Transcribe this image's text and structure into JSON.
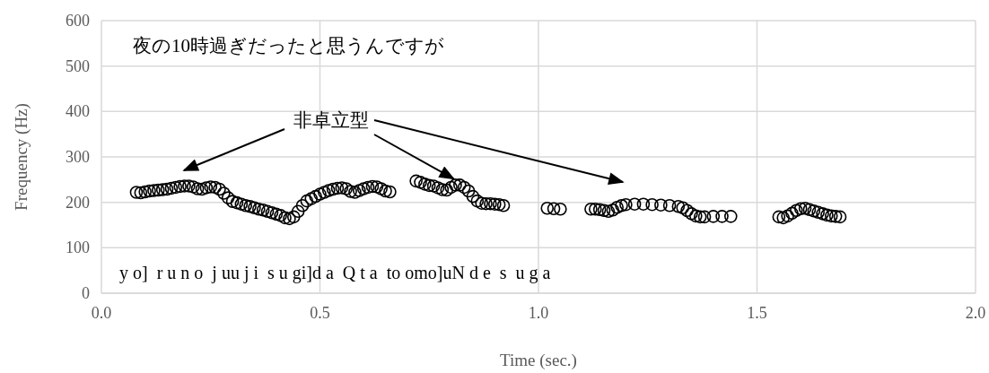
{
  "chart_data": {
    "type": "scatter",
    "xlabel": "Time (sec.)",
    "ylabel": "Frequency (Hz)",
    "xlim": [
      0,
      2
    ],
    "xticks": [
      {
        "value": 0,
        "label": "0.0"
      },
      {
        "value": 0.5,
        "label": "0.5"
      },
      {
        "value": 1,
        "label": "1.0"
      },
      {
        "value": 1.5,
        "label": "1.5"
      },
      {
        "value": 2,
        "label": "2.0"
      }
    ],
    "ylim": [
      0,
      600
    ],
    "yticks": [
      0,
      100,
      200,
      300,
      400,
      500,
      600
    ],
    "grid": true,
    "marker": "circle",
    "annotations": [
      "夜の10時過ぎだったと思うんですが",
      "y o]  r u n o  j uu j i  s u gi]d a  Q t a  to omo]uN d e  s  u g a",
      {
        "text": "非卓立型",
        "x": 0.81,
        "y": 238
      }
    ],
    "series": [
      {
        "color": "#000000",
        "x": [
          0.08,
          0.09,
          0.1,
          0.11,
          0.12,
          0.13,
          0.14,
          0.15,
          0.16,
          0.17,
          0.18,
          0.19,
          0.2,
          0.21,
          0.22,
          0.23,
          0.24,
          0.25,
          0.26,
          0.27,
          0.28,
          0.29,
          0.3,
          0.31,
          0.32,
          0.33,
          0.34,
          0.35,
          0.36,
          0.37,
          0.38,
          0.39,
          0.4,
          0.41,
          0.42,
          0.43,
          0.44,
          0.45,
          0.46,
          0.47,
          0.48,
          0.49,
          0.5,
          0.51,
          0.52,
          0.53,
          0.54,
          0.55,
          0.56,
          0.57,
          0.58,
          0.59,
          0.6,
          0.61,
          0.62,
          0.63,
          0.64,
          0.65,
          0.66,
          0.72,
          0.73,
          0.74,
          0.75,
          0.76,
          0.77,
          0.78,
          0.79,
          0.8,
          0.81,
          0.82,
          0.83,
          0.84,
          0.85,
          0.86,
          0.87,
          0.88,
          0.89,
          0.9,
          0.91,
          0.92,
          1.02,
          1.035,
          1.05,
          1.12,
          1.13,
          1.14,
          1.15,
          1.16,
          1.17,
          1.18,
          1.19,
          1.2,
          1.22,
          1.24,
          1.26,
          1.28,
          1.3,
          1.32,
          1.33,
          1.34,
          1.35,
          1.36,
          1.37,
          1.38,
          1.4,
          1.42,
          1.44,
          1.55,
          1.56,
          1.57,
          1.58,
          1.59,
          1.6,
          1.61,
          1.62,
          1.63,
          1.64,
          1.65,
          1.66,
          1.67,
          1.68,
          1.69
        ],
        "values": [
          222,
          221,
          223,
          225,
          226,
          227,
          228,
          229,
          231,
          233,
          235,
          236,
          236,
          234,
          230,
          229,
          232,
          234,
          233,
          229,
          220,
          210,
          202,
          199,
          196,
          193,
          191,
          188,
          185,
          183,
          180,
          177,
          174,
          171,
          166,
          164,
          168,
          180,
          193,
          203,
          208,
          213,
          218,
          222,
          226,
          229,
          231,
          232,
          230,
          224,
          222,
          226,
          230,
          233,
          235,
          234,
          230,
          225,
          223,
          247,
          244,
          240,
          237,
          236,
          232,
          228,
          227,
          233,
          238,
          238,
          233,
          225,
          213,
          203,
          198,
          197,
          197,
          196,
          195,
          193,
          187,
          186,
          185,
          185,
          185,
          184,
          182,
          180,
          183,
          189,
          193,
          195,
          196,
          196,
          195,
          194,
          193,
          191,
          188,
          182,
          175,
          170,
          168,
          168,
          169,
          169,
          169,
          168,
          166,
          170,
          176,
          182,
          186,
          187,
          184,
          181,
          178,
          175,
          172,
          170,
          169,
          168
        ]
      }
    ]
  }
}
